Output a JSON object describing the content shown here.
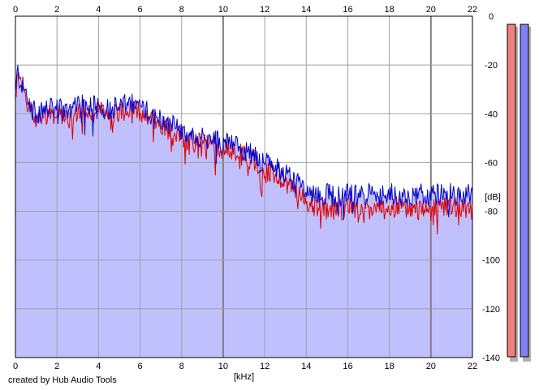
{
  "credit": "created by Hub Audio Tools",
  "chart_data": {
    "type": "area",
    "xlabel": "[kHz]",
    "ylabel": "[dB]",
    "xlim": [
      0,
      22
    ],
    "ylim": [
      -140,
      0
    ],
    "x_ticks": [
      0,
      2,
      4,
      6,
      8,
      10,
      12,
      14,
      16,
      18,
      20,
      22
    ],
    "y_ticks": [
      0,
      -20,
      -40,
      -60,
      -80,
      -100,
      -120,
      -140
    ],
    "y_tick_labels": [
      "0",
      "-20",
      "-40",
      "-60",
      "-80",
      "-100",
      "-120",
      "-140"
    ],
    "grid": true,
    "colors": {
      "fill": "#c0c0ff",
      "right_channel": "#0000cc",
      "left_channel": "#e00000",
      "meter_left": "#f08080",
      "meter_right": "#8080f0",
      "meter_shadow": "#b0b0b0"
    },
    "series": [
      {
        "role": "right channel envelope",
        "x": [
          0,
          0.1,
          0.2,
          0.4,
          0.6,
          0.8,
          1.0,
          1.5,
          2.0,
          2.5,
          3.0,
          3.5,
          4.0,
          4.5,
          5.0,
          5.5,
          6.0,
          6.5,
          7.0,
          7.5,
          8.0,
          8.5,
          9.0,
          9.5,
          10.0,
          10.5,
          11.0,
          11.5,
          12.0,
          12.5,
          13.0,
          13.5,
          14.0,
          14.5,
          15.0,
          15.5,
          16.0,
          16.5,
          17.0,
          17.5,
          18.0,
          18.5,
          19.0,
          19.5,
          20.0,
          20.5,
          21.0,
          21.5,
          22.0
        ],
        "values": [
          -33,
          -22,
          -26,
          -30,
          -33,
          -38,
          -40,
          -38,
          -38,
          -39,
          -37,
          -36,
          -37,
          -38,
          -37,
          -36,
          -37,
          -40,
          -42,
          -44,
          -47,
          -50,
          -50,
          -50,
          -52,
          -52,
          -55,
          -57,
          -60,
          -62,
          -64,
          -68,
          -72,
          -73,
          -73,
          -74,
          -73,
          -73,
          -73,
          -74,
          -73,
          -73,
          -74,
          -73,
          -74,
          -72,
          -72,
          -73,
          -73
        ]
      },
      {
        "role": "left channel envelope",
        "x": [
          0,
          0.1,
          0.2,
          0.4,
          0.6,
          0.8,
          1.0,
          1.5,
          2.0,
          2.5,
          3.0,
          3.5,
          4.0,
          4.5,
          5.0,
          5.5,
          6.0,
          6.5,
          7.0,
          7.5,
          8.0,
          8.5,
          9.0,
          9.5,
          10.0,
          10.5,
          11.0,
          11.5,
          12.0,
          12.5,
          13.0,
          13.5,
          14.0,
          14.5,
          15.0,
          15.5,
          16.0,
          16.5,
          17.0,
          17.5,
          18.0,
          18.5,
          19.0,
          19.5,
          20.0,
          20.5,
          21.0,
          21.5,
          22.0
        ],
        "values": [
          -34,
          -24,
          -28,
          -32,
          -35,
          -40,
          -42,
          -40,
          -40,
          -41,
          -39,
          -38,
          -39,
          -40,
          -39,
          -38,
          -39,
          -42,
          -44,
          -46,
          -49,
          -52,
          -52,
          -53,
          -55,
          -55,
          -57,
          -59,
          -63,
          -65,
          -68,
          -71,
          -76,
          -78,
          -79,
          -79,
          -79,
          -78,
          -79,
          -79,
          -79,
          -78,
          -80,
          -79,
          -80,
          -78,
          -78,
          -79,
          -80
        ]
      }
    ],
    "meter_levels_db": [
      -140,
      -140
    ]
  }
}
